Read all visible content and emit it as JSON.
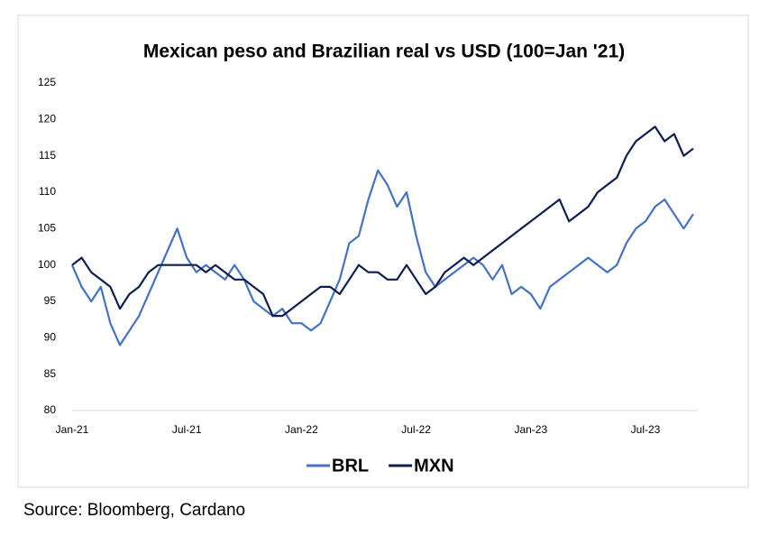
{
  "chart_data": {
    "type": "line",
    "title": "Mexican peso and Brazilian real vs USD (100=Jan '21)",
    "categories": [
      "Jan-21",
      null,
      null,
      null,
      null,
      null,
      null,
      null,
      null,
      null,
      null,
      null,
      "Jul-21",
      null,
      null,
      null,
      null,
      null,
      null,
      null,
      null,
      null,
      null,
      null,
      "Jan-22",
      null,
      null,
      null,
      null,
      null,
      null,
      null,
      null,
      null,
      null,
      null,
      "Jul-22",
      null,
      null,
      null,
      null,
      null,
      null,
      null,
      null,
      null,
      null,
      null,
      "Jan-23",
      null,
      null,
      null,
      null,
      null,
      null,
      null,
      null,
      null,
      null,
      null,
      "Jul-23",
      null,
      null,
      null,
      null,
      null
    ],
    "series": [
      {
        "name": "BRL",
        "color": "#4472c4",
        "values": [
          100,
          97,
          95,
          97,
          92,
          89,
          91,
          93,
          96,
          99,
          102,
          105,
          101,
          99,
          100,
          99,
          98,
          100,
          98,
          95,
          94,
          93,
          94,
          92,
          92,
          91,
          92,
          95,
          98,
          103,
          104,
          109,
          113,
          111,
          108,
          110,
          104,
          99,
          97,
          98,
          99,
          100,
          101,
          100,
          98,
          100,
          96,
          97,
          96,
          94,
          97,
          98,
          99,
          100,
          101,
          100,
          99,
          100,
          103,
          105,
          106,
          108,
          109,
          107,
          105,
          107
        ]
      },
      {
        "name": "MXN",
        "color": "#0d1f4f",
        "values": [
          100,
          101,
          99,
          98,
          97,
          94,
          96,
          97,
          99,
          100,
          100,
          100,
          100,
          100,
          99,
          100,
          99,
          98,
          98,
          97,
          96,
          93,
          93,
          94,
          95,
          96,
          97,
          97,
          96,
          98,
          100,
          99,
          99,
          98,
          98,
          100,
          98,
          96,
          97,
          99,
          100,
          101,
          100,
          101,
          102,
          103,
          104,
          105,
          106,
          107,
          108,
          109,
          106,
          107,
          108,
          110,
          111,
          112,
          115,
          117,
          118,
          119,
          117,
          118,
          115,
          116
        ]
      }
    ],
    "ylim": [
      80,
      125
    ],
    "yticks": [
      80,
      85,
      90,
      95,
      100,
      105,
      110,
      115,
      120,
      125
    ],
    "legend": "bottom",
    "source": "Source: Bloomberg, Cardano"
  }
}
